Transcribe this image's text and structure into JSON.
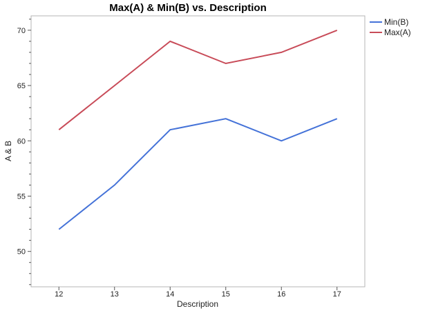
{
  "chart_data": {
    "type": "line",
    "title": "Max(A) & Min(B) vs. Description",
    "xlabel": "Description",
    "ylabel": "A & B",
    "x": [
      12,
      13,
      14,
      15,
      16,
      17
    ],
    "xlim": [
      11.5,
      17.5
    ],
    "ylim": [
      46.8,
      71.3
    ],
    "y_ticks": [
      50,
      55,
      60,
      65,
      70
    ],
    "y_tick_labels": [
      "50",
      "55",
      "60",
      "65",
      "70"
    ],
    "x_tick_labels": [
      "12",
      "13",
      "14",
      "15",
      "16",
      "17"
    ],
    "grid": false,
    "legend_position": "top-right outside",
    "series": [
      {
        "name": "Min(B)",
        "color": "#4472D8",
        "values": [
          52,
          56,
          61,
          62,
          60,
          62
        ]
      },
      {
        "name": "Max(A)",
        "color": "#C84B58",
        "values": [
          61,
          65,
          69,
          67,
          68,
          70
        ]
      }
    ]
  }
}
